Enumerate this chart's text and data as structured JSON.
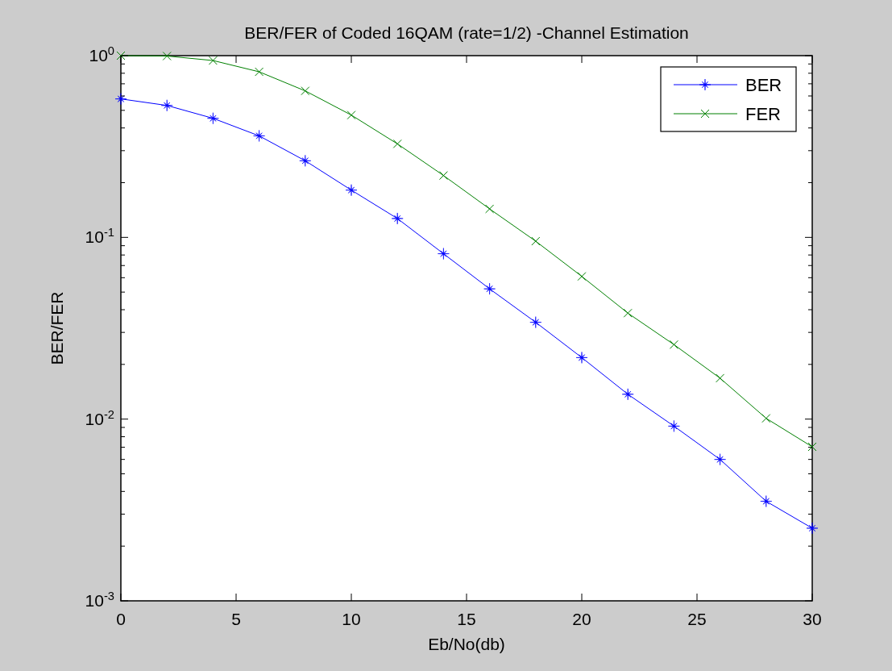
{
  "chart_data": {
    "type": "line",
    "title": "BER/FER of Coded 16QAM (rate=1/2) -Channel Estimation",
    "xlabel": "Eb/No(db)",
    "ylabel": "BER/FER",
    "x": [
      0,
      2,
      4,
      6,
      8,
      10,
      12,
      14,
      16,
      18,
      20,
      22,
      24,
      26,
      28,
      30
    ],
    "series": [
      {
        "name": "BER",
        "color": "#0000ff",
        "marker": "star",
        "values": [
          0.578,
          0.532,
          0.452,
          0.362,
          0.264,
          0.182,
          0.127,
          0.0813,
          0.0521,
          0.0341,
          0.0218,
          0.0137,
          0.00915,
          0.006,
          0.00353,
          0.00251
        ]
      },
      {
        "name": "FER",
        "color": "#008000",
        "marker": "cross",
        "values": [
          1.0,
          0.995,
          0.94,
          0.815,
          0.64,
          0.471,
          0.327,
          0.219,
          0.1435,
          0.0953,
          0.061,
          0.0383,
          0.0257,
          0.0168,
          0.0101,
          0.00704
        ]
      }
    ],
    "log": "y",
    "xlim": [
      0,
      30
    ],
    "xticks": [
      0,
      5,
      10,
      15,
      20,
      25,
      30
    ],
    "ylim": [
      0.001,
      1
    ],
    "yticks": [
      {
        "value": 0.001,
        "label": "10$^{-3}$"
      },
      {
        "value": 0.01,
        "label": "10$^{-2}$"
      },
      {
        "value": 0.1,
        "label": "10$^{-1}$"
      },
      {
        "value": 1,
        "label": "10$^{0}$"
      }
    ],
    "grid": false,
    "legend": "top right",
    "line_style": "solid"
  }
}
